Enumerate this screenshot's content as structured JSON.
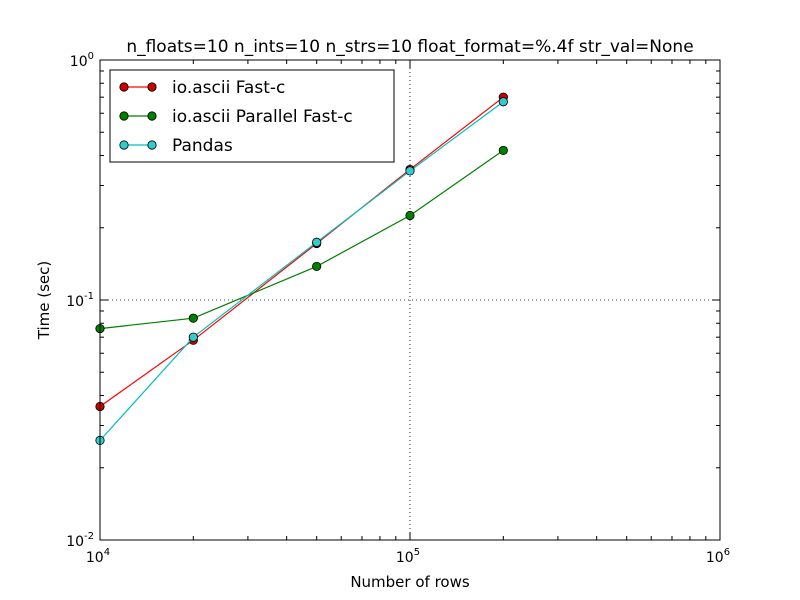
{
  "chart_data": {
    "type": "line",
    "title": "n_floats=10 n_ints=10 n_strs=10 float_format=%.4f str_val=None",
    "xlabel": "Number of rows",
    "ylabel": "Time (sec)",
    "xscale": "log",
    "yscale": "log",
    "xlim": [
      10000,
      1000000
    ],
    "ylim": [
      0.01,
      1
    ],
    "x_tick_values": [
      10000,
      100000,
      1000000
    ],
    "x_tick_labels": [
      {
        "base": "10",
        "exp": "4"
      },
      {
        "base": "10",
        "exp": "5"
      },
      {
        "base": "10",
        "exp": "6"
      }
    ],
    "y_tick_values": [
      0.01,
      0.1,
      1
    ],
    "y_tick_labels": [
      {
        "base": "10",
        "exp": "-2"
      },
      {
        "base": "10",
        "exp": "-1"
      },
      {
        "base": "10",
        "exp": "0"
      }
    ],
    "grid": "major",
    "legend_position": "top-left",
    "x": [
      10000,
      20000,
      50000,
      100000,
      200000
    ],
    "series": [
      {
        "name": "io.ascii Fast-c",
        "color": "#ff0000",
        "marker_color": "#cc0000",
        "values": [
          0.036,
          0.068,
          0.172,
          0.35,
          0.7
        ]
      },
      {
        "name": "io.ascii Parallel Fast-c",
        "color": "#007f00",
        "marker_color": "#007f00",
        "values": [
          0.076,
          0.084,
          0.138,
          0.225,
          0.42
        ]
      },
      {
        "name": "Pandas",
        "color": "#00bfbf",
        "marker_color": "#33cccc",
        "values": [
          0.026,
          0.07,
          0.174,
          0.345,
          0.67
        ]
      }
    ]
  }
}
